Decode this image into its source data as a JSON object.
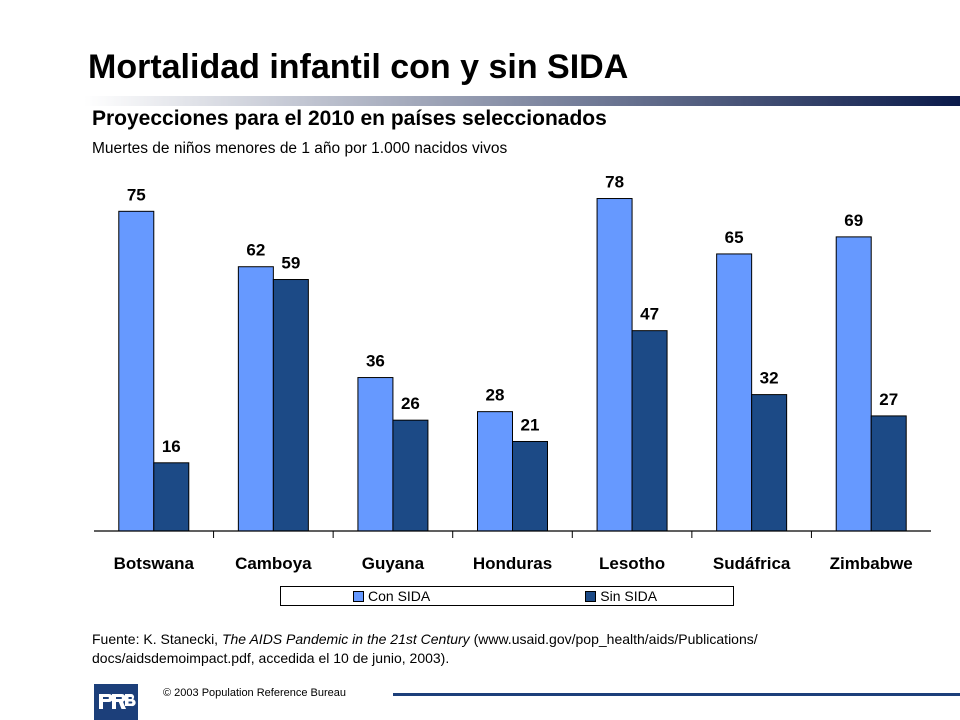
{
  "title": "Mortalidad infantil con y sin SIDA",
  "subtitle": "Proyecciones para el 2010 en países seleccionados",
  "unit_note": "Muertes de niños menores de 1 año por 1.000 nacidos vivos",
  "source": {
    "prefix": "Fuente: K. Stanecki, ",
    "book": "The AIDS Pandemic in the 21st Century",
    "suffix": " (www.usaid.gov/pop_health/aids/Publications/ docs/aidsdemoimpact.pdf, accedida el 10 de  junio, 2003)."
  },
  "footer": {
    "logo_text": "PRB",
    "copyright": "© 2003 Population Reference Bureau"
  },
  "colors": {
    "con_sida": "#6699ff",
    "sin_sida": "#1c4a86",
    "rule_dark": "#0a1a4a",
    "rule_light": "#ffffff",
    "footer_navy": "#1c3f7a"
  },
  "chart_data": {
    "type": "bar",
    "categories": [
      "Botswana",
      "Camboya",
      "Guyana",
      "Honduras",
      "Lesotho",
      "Sudáfrica",
      "Zimbabwe"
    ],
    "series": [
      {
        "name": "Con SIDA",
        "color": "#6699ff",
        "values": [
          75,
          62,
          36,
          28,
          78,
          65,
          69
        ]
      },
      {
        "name": "Sin SIDA",
        "color": "#1c4a86",
        "values": [
          16,
          59,
          26,
          21,
          47,
          32,
          27
        ]
      }
    ],
    "ylim": [
      0,
      80
    ],
    "grid": false,
    "data_labels": true,
    "legend_position": "bottom"
  }
}
